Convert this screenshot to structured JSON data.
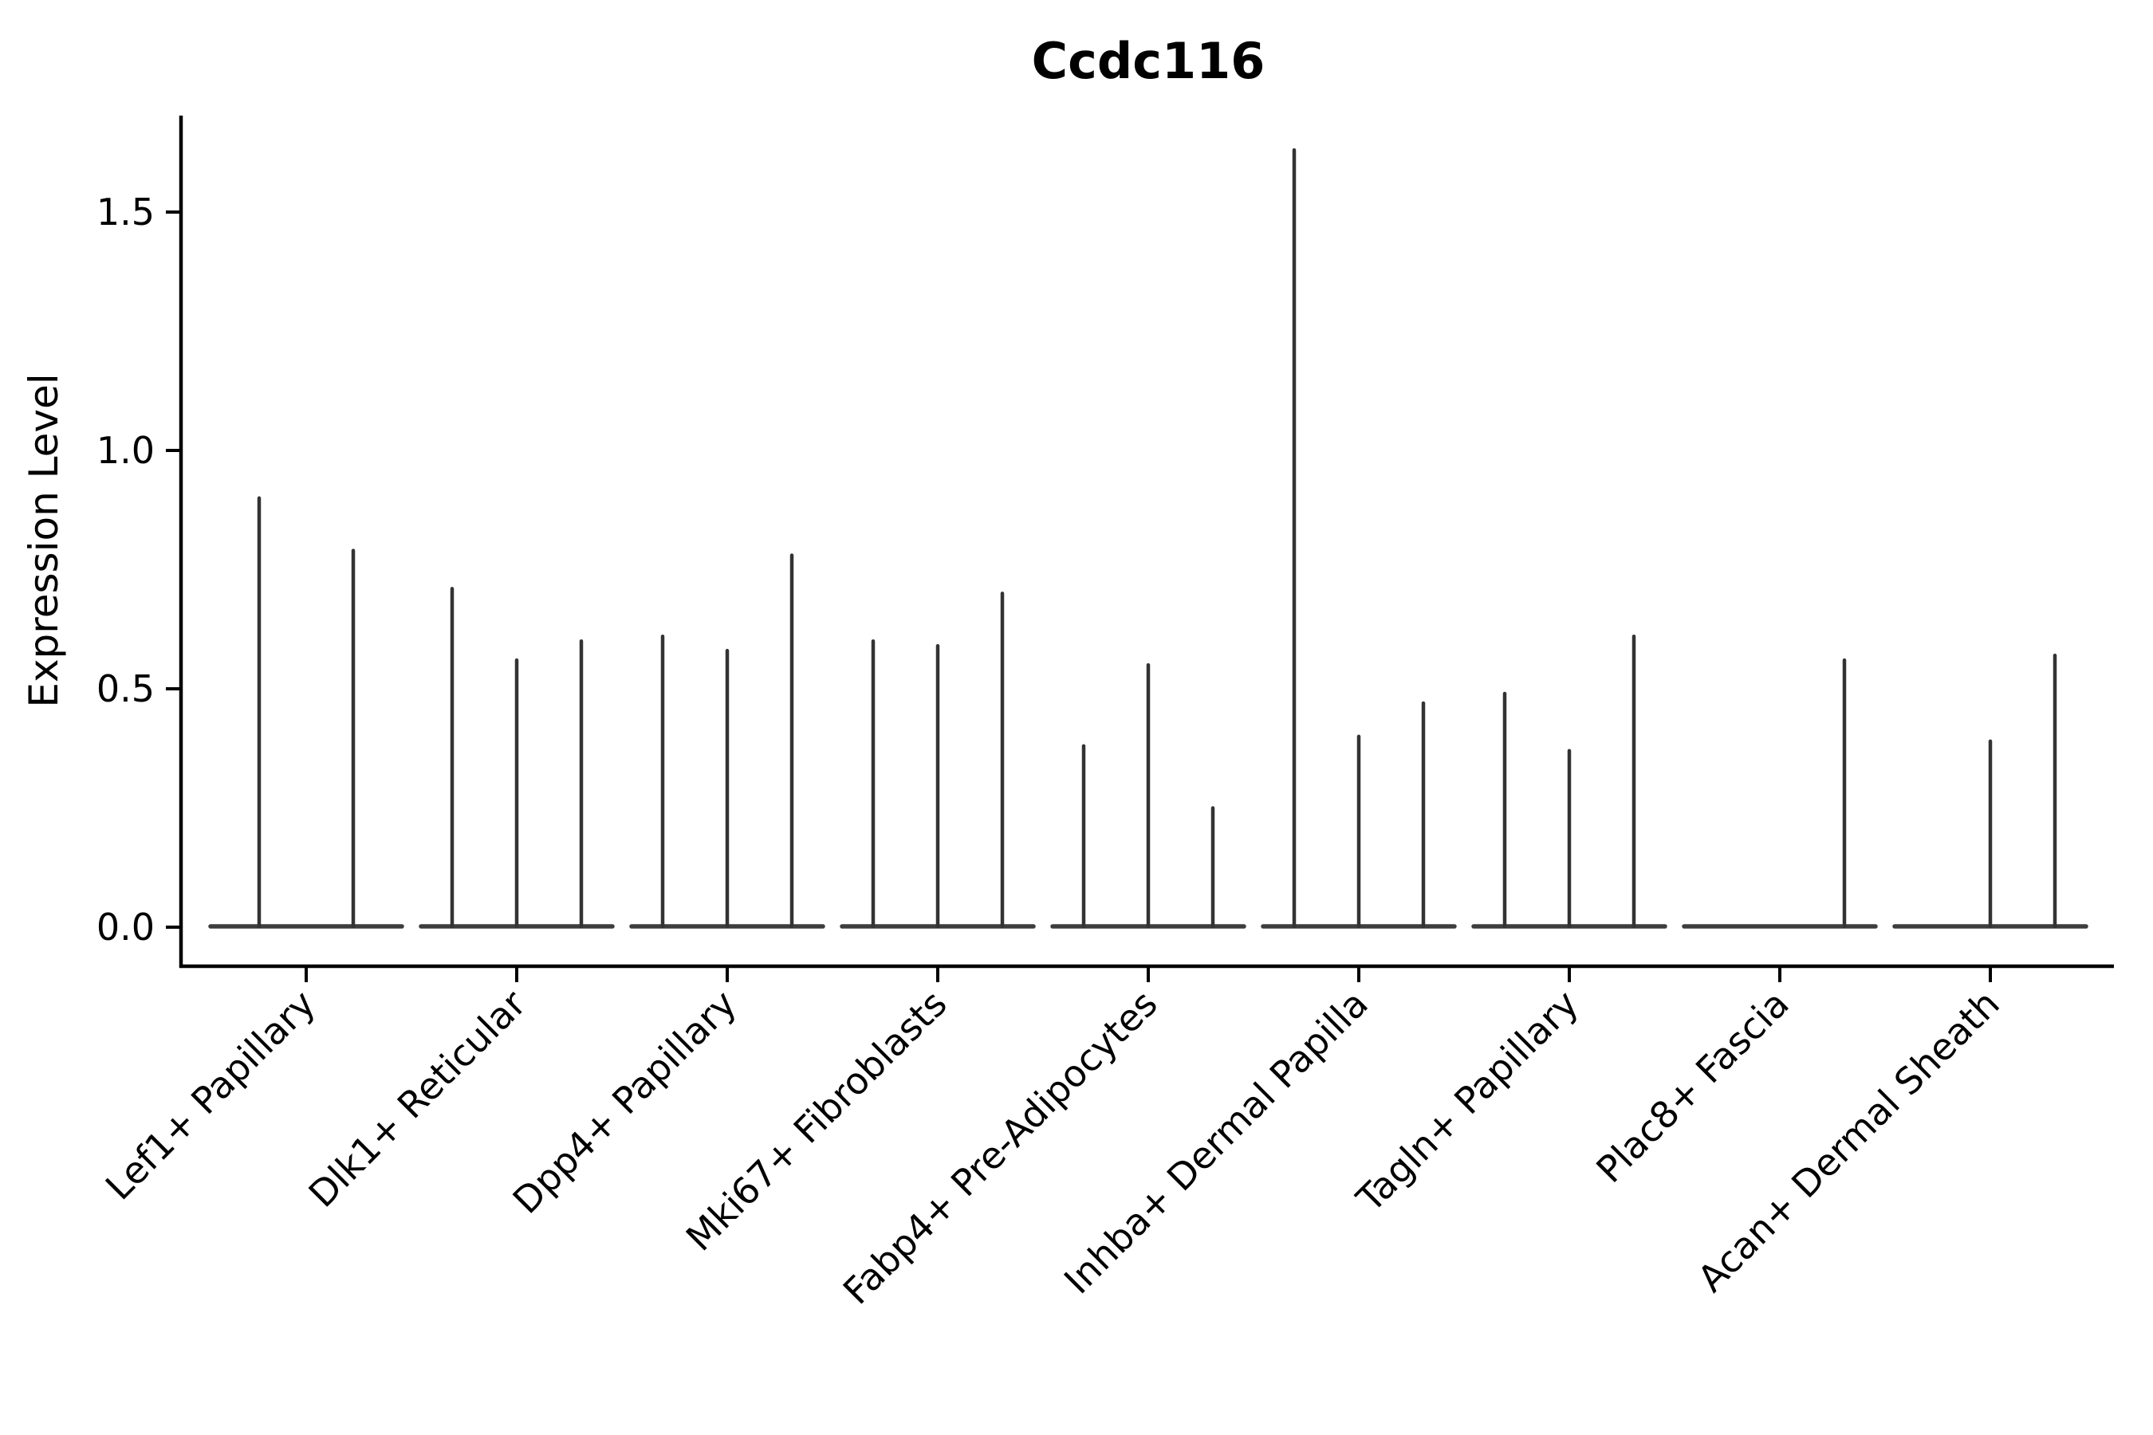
{
  "chart_data": {
    "type": "violin",
    "title": "Ccdc116",
    "ylabel": "Expression Level",
    "xlabel": "",
    "yticks": [
      0.0,
      0.5,
      1.0,
      1.5
    ],
    "ytick_labels": [
      "0.0",
      "0.5",
      "1.0",
      "1.5"
    ],
    "ylim": [
      -0.08,
      1.7
    ],
    "grid": false,
    "legend_position": "none",
    "categories": [
      "Lef1+ Papillary",
      "Dlk1+ Reticular",
      "Dpp4+ Papillary",
      "Mki67+ Fibroblasts",
      "Fabp4+ Pre-Adipocytes",
      "Inhba+ Dermal Papilla",
      "Tagln+ Papillary",
      "Plac8+ Fascia",
      "Acan+ Dermal Sheath"
    ],
    "groups": [
      {
        "category": "Lef1+ Papillary",
        "violin_max_values": [
          0.9,
          0.79
        ]
      },
      {
        "category": "Dlk1+ Reticular",
        "violin_max_values": [
          0.71,
          0.56,
          0.6
        ]
      },
      {
        "category": "Dpp4+ Papillary",
        "violin_max_values": [
          0.61,
          0.58,
          0.78
        ]
      },
      {
        "category": "Mki67+ Fibroblasts",
        "violin_max_values": [
          0.6,
          0.59,
          0.7
        ]
      },
      {
        "category": "Fabp4+ Pre-Adipocytes",
        "violin_max_values": [
          0.38,
          0.55,
          0.25
        ]
      },
      {
        "category": "Inhba+ Dermal Papilla",
        "violin_max_values": [
          1.63,
          0.4,
          0.47
        ]
      },
      {
        "category": "Tagln+ Papillary",
        "violin_max_values": [
          0.49,
          0.37,
          0.61
        ]
      },
      {
        "category": "Plac8+ Fascia",
        "violin_max_values": [
          null,
          null,
          0.56
        ]
      },
      {
        "category": "Acan+ Dermal Sheath",
        "violin_max_values": [
          null,
          0.39,
          0.57
        ]
      }
    ],
    "baseline_value": 0.0,
    "colors": {
      "violin_line": "#333333",
      "axis": "#000000",
      "text": "#000000",
      "background": "#ffffff"
    }
  }
}
